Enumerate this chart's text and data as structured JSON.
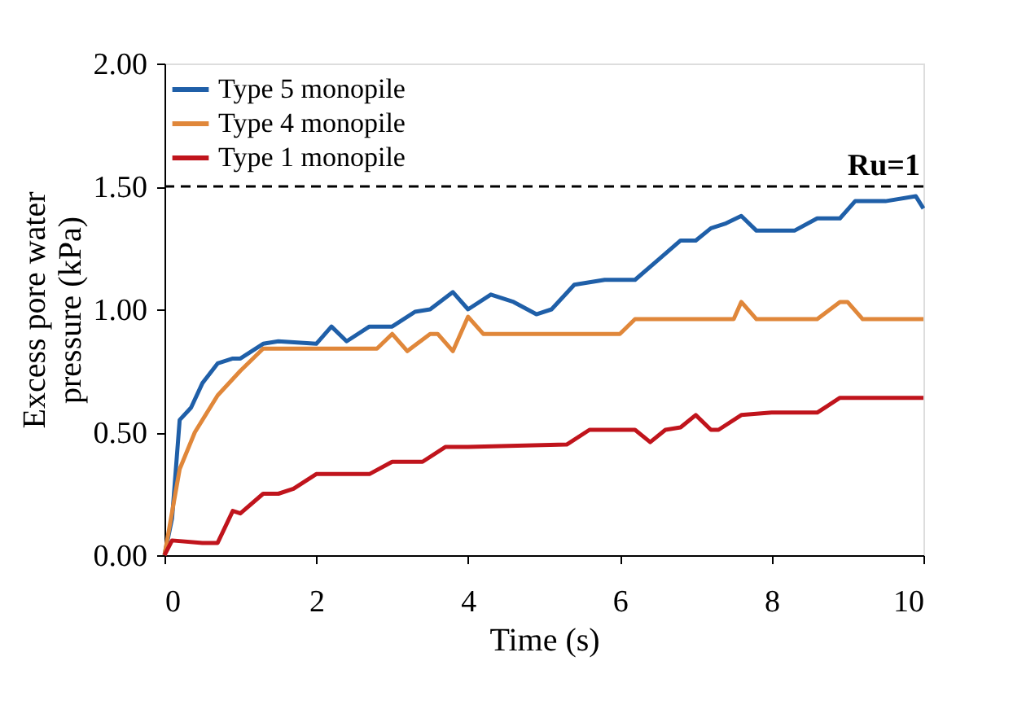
{
  "chart_data": {
    "type": "line",
    "xlabel": "Time (s)",
    "ylabel": "Excess pore water pressure (kPa)",
    "xlim": [
      0,
      10
    ],
    "xticks": [
      0,
      2,
      4,
      6,
      8,
      10
    ],
    "ylim": [
      0,
      2
    ],
    "yticks": [
      {
        "value": 0,
        "label": "0.00"
      },
      {
        "value": 0.5,
        "label": "0.50"
      },
      {
        "value": 1,
        "label": "1.00"
      },
      {
        "value": 1.5,
        "label": "1.50"
      },
      {
        "value": 2,
        "label": "2.00"
      }
    ],
    "grid": false,
    "legend": "top left",
    "marker": "none",
    "line_style": "solid",
    "ref_lines": [
      {
        "axis": "y",
        "value": 1.5,
        "label": "Ru=1",
        "color": "#000000",
        "line_style": "dashed"
      }
    ],
    "series": [
      {
        "name": "Type 5 monopile",
        "color": "#1f5fa8",
        "x": [
          0,
          0.1,
          0.2,
          0.35,
          0.5,
          0.7,
          0.9,
          1.0,
          1.3,
          1.5,
          2.0,
          2.2,
          2.4,
          2.7,
          3.0,
          3.3,
          3.5,
          3.8,
          4.0,
          4.3,
          4.6,
          4.9,
          5.1,
          5.4,
          5.8,
          6.2,
          6.5,
          6.8,
          7.0,
          7.2,
          7.4,
          7.6,
          7.8,
          8.3,
          8.6,
          8.9,
          9.1,
          9.5,
          9.9,
          10
        ],
        "values": [
          0,
          0.15,
          0.55,
          0.6,
          0.7,
          0.78,
          0.8,
          0.8,
          0.86,
          0.87,
          0.86,
          0.93,
          0.87,
          0.93,
          0.93,
          0.99,
          1.0,
          1.07,
          1.0,
          1.06,
          1.03,
          0.98,
          1.0,
          1.1,
          1.12,
          1.12,
          1.2,
          1.28,
          1.28,
          1.33,
          1.35,
          1.38,
          1.32,
          1.32,
          1.37,
          1.37,
          1.44,
          1.44,
          1.46,
          1.41
        ]
      },
      {
        "name": "Type 4 monopile",
        "color": "#e0873a",
        "x": [
          0,
          0.2,
          0.4,
          0.7,
          1.0,
          1.3,
          2.0,
          2.8,
          3.0,
          3.2,
          3.5,
          3.6,
          3.8,
          4.0,
          4.2,
          5.0,
          6.0,
          6.2,
          7.5,
          7.6,
          7.8,
          8.6,
          8.9,
          9.0,
          9.2,
          10
        ],
        "values": [
          0,
          0.35,
          0.5,
          0.65,
          0.75,
          0.84,
          0.84,
          0.84,
          0.9,
          0.83,
          0.9,
          0.9,
          0.83,
          0.97,
          0.9,
          0.9,
          0.9,
          0.96,
          0.96,
          1.03,
          0.96,
          0.96,
          1.03,
          1.03,
          0.96,
          0.96
        ]
      },
      {
        "name": "Type 1 monopile",
        "color": "#c0141c",
        "x": [
          0,
          0.1,
          0.5,
          0.7,
          0.9,
          1.0,
          1.3,
          1.5,
          1.7,
          2.0,
          2.7,
          3.0,
          3.4,
          3.7,
          4.0,
          5.3,
          5.6,
          6.2,
          6.4,
          6.6,
          6.8,
          7.0,
          7.2,
          7.3,
          7.6,
          8.0,
          8.6,
          8.9,
          10
        ],
        "values": [
          0,
          0.06,
          0.05,
          0.05,
          0.18,
          0.17,
          0.25,
          0.25,
          0.27,
          0.33,
          0.33,
          0.38,
          0.38,
          0.44,
          0.44,
          0.45,
          0.51,
          0.51,
          0.46,
          0.51,
          0.52,
          0.57,
          0.51,
          0.51,
          0.57,
          0.58,
          0.58,
          0.64,
          0.64
        ]
      }
    ]
  }
}
